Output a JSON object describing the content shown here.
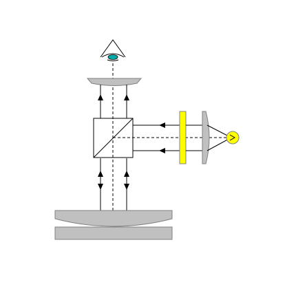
{
  "diagram": {
    "kind": "optical interferometer schematic",
    "components": [
      {
        "id": "observer-eye",
        "icon": "eye-icon"
      },
      {
        "id": "eyepiece-lens"
      },
      {
        "id": "beam-splitter-cube"
      },
      {
        "id": "reference-flat"
      },
      {
        "id": "test-surface"
      },
      {
        "id": "yellow-filter"
      },
      {
        "id": "collimating-lens"
      },
      {
        "id": "light-source",
        "icon": "sun-icon"
      }
    ],
    "colors": {
      "glass_fill": "#c0c0c0",
      "glass_stroke": "#808080",
      "filter_fill": "#ffff00",
      "source_fill": "#ffff00",
      "eye_iris": "#00a8a8",
      "line": "#000000",
      "background": "#ffffff"
    }
  }
}
